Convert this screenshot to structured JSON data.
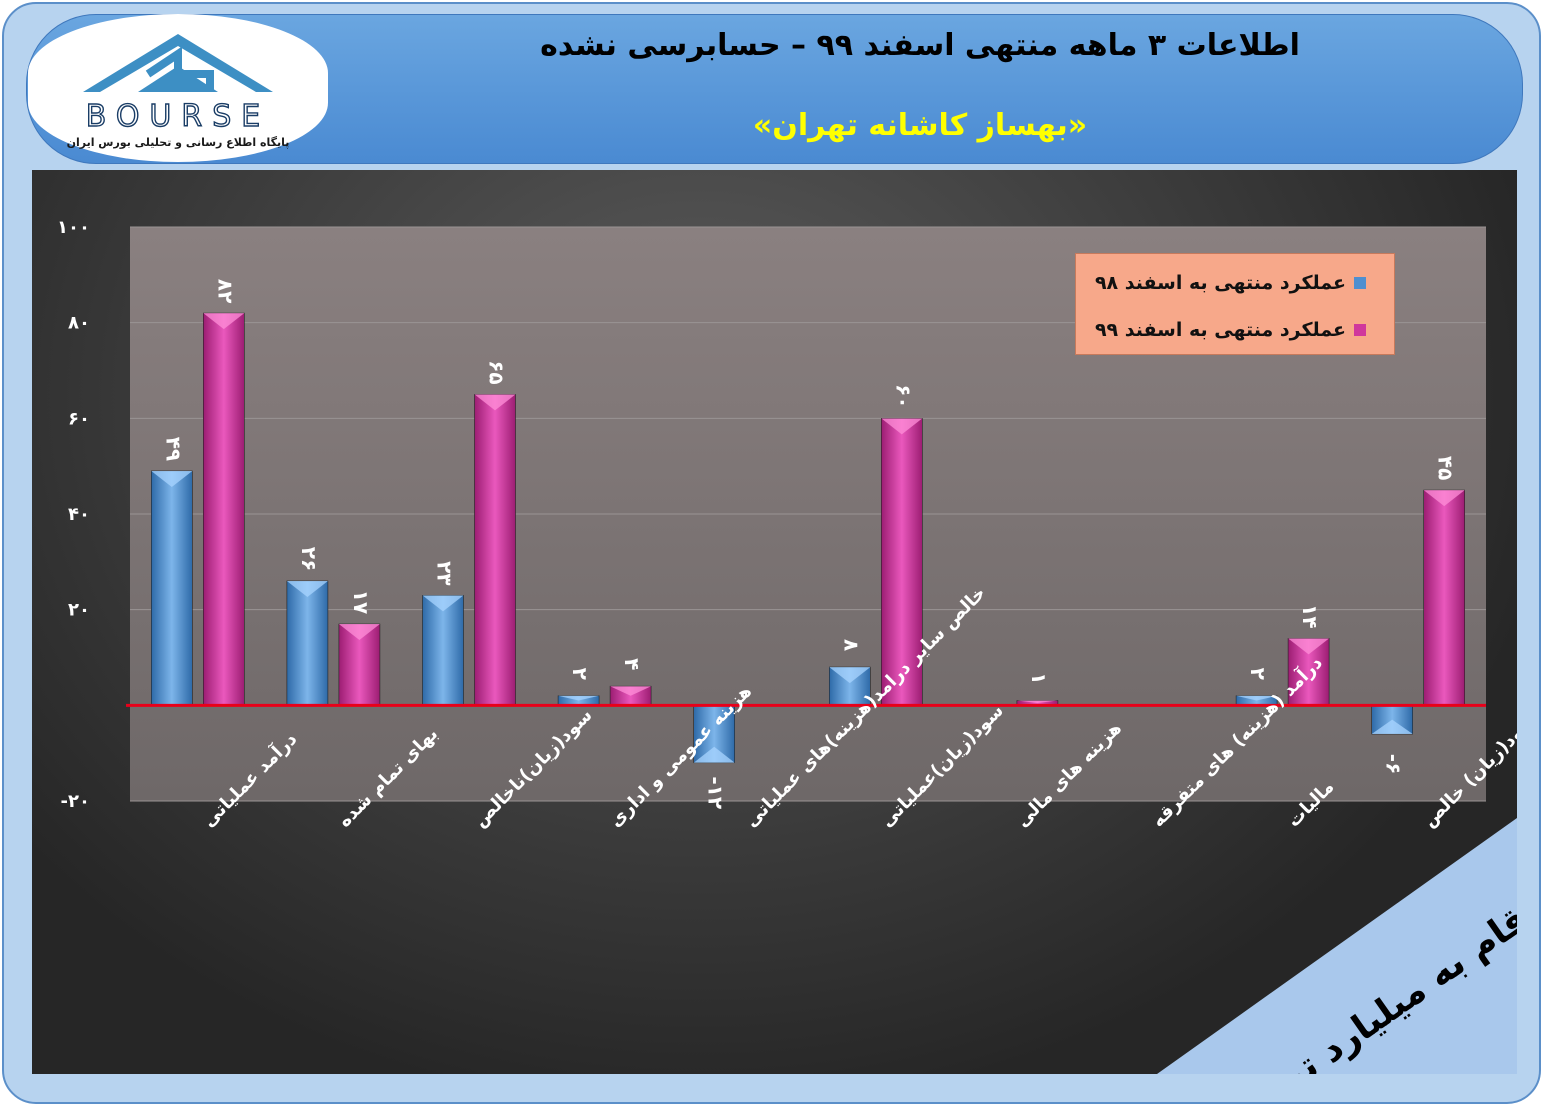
{
  "header": {
    "title": "اطلاعات ۳ ماهه منتهی اسفند ۹۹ – حسابرسی نشده",
    "subtitle": "«بهساز کاشانه تهران»"
  },
  "logo": {
    "wordmark": "BOURSE",
    "tagline": "پایگاه اطلاع رسانی و تحلیلی بورس ایران"
  },
  "units_label": "ارقام به میلیارد تومان",
  "colors": {
    "series_98": "#4f8fd0",
    "series_99": "#d0379c",
    "zero_line": "#e8001a",
    "legend_bg": "#f7a88a",
    "title_yellow": "#ffff00"
  },
  "chart_data": {
    "type": "bar",
    "categories": [
      "درآمد عملیاتی",
      "بهای تمام شده",
      "سود(زیان)ناخالص",
      "هزینه عمومی و اداری",
      "خالص سایر درامد(هزینه)های عملیاتی",
      "سود(زیان)عملیاتی",
      "هزینه های مالی",
      "درآمد (هزینه) های متفرقه",
      "مالیات",
      "سود(زیان) خالص"
    ],
    "series": [
      {
        "name": "عملکرد منتهی به اسفند ۹۸",
        "values": [
          49,
          26,
          23,
          2,
          -12,
          8,
          null,
          null,
          2,
          -6
        ],
        "labels": [
          "۴۹",
          "۲۶",
          "۲۳",
          "۲",
          "-۱۲",
          "۸",
          "",
          "",
          "۲",
          "-۶"
        ]
      },
      {
        "name": "عملکرد منتهی به اسفند ۹۹",
        "values": [
          82,
          17,
          65,
          4,
          0,
          60,
          1,
          0,
          14,
          45
        ],
        "labels": [
          "۸۲",
          "۱۷",
          "۶۵",
          "۴",
          "",
          "۶۰",
          "۱",
          "",
          "۱۴",
          "۴۵"
        ]
      }
    ],
    "yticks": [
      100,
      80,
      60,
      40,
      20,
      -20
    ],
    "ytick_labels": [
      "۱۰۰",
      "۸۰",
      "۶۰",
      "۴۰",
      "۲۰",
      "-۲۰"
    ],
    "ylim": [
      -20,
      100
    ],
    "grid": true,
    "legend_position": "top-right"
  }
}
